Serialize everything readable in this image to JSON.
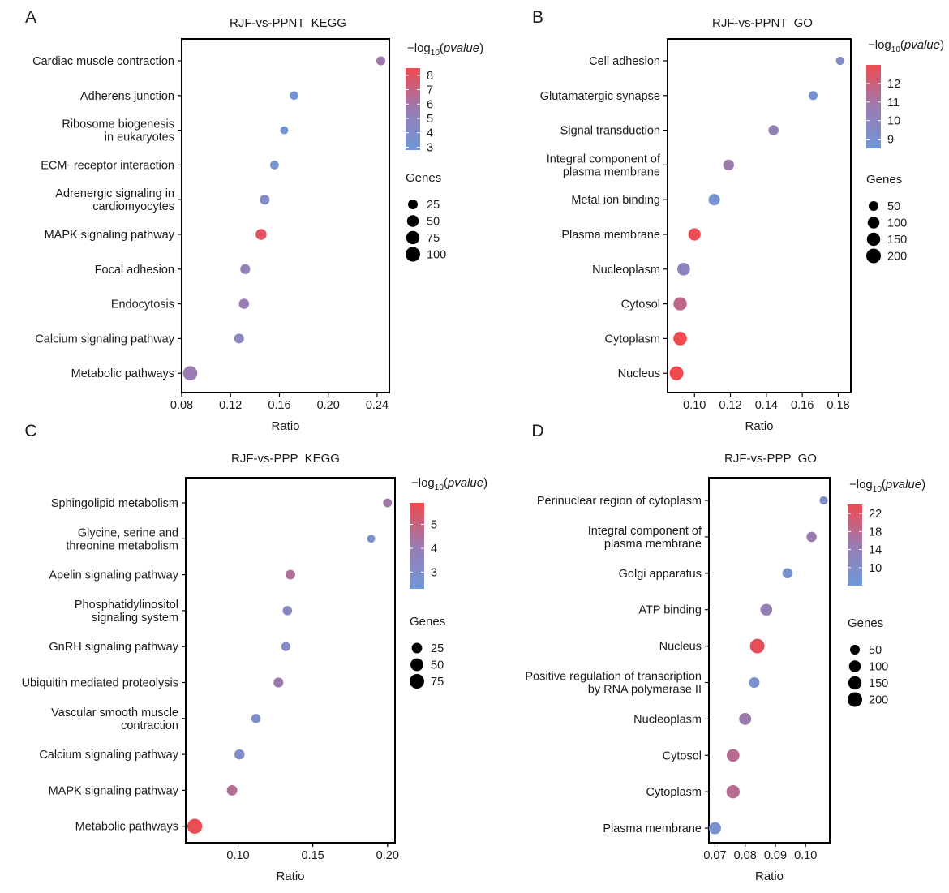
{
  "colors": {
    "low": "#6f98d8",
    "mid": "#9a7bb0",
    "high": "#f04a4f",
    "axis": "#000000",
    "text": "#1a1a1a"
  },
  "chart_data": [
    {
      "type": "scatter",
      "panel_label": "A",
      "title": "RJF-vs-PPNT  KEGG",
      "xlabel": "Ratio",
      "xlim": [
        0.08,
        0.25
      ],
      "xticks": [
        0.08,
        0.12,
        0.16,
        0.2,
        0.24
      ],
      "xtick_labels": [
        "0.08",
        "0.12",
        "0.16",
        "0.20",
        "0.24"
      ],
      "categories": [
        [
          "Cardiac muscle contraction"
        ],
        [
          "Adherens junction"
        ],
        [
          "Ribosome biogenesis",
          "in eukaryotes"
        ],
        [
          "ECM−receptor interaction"
        ],
        [
          "Adrenergic signaling in",
          "cardiomyocytes"
        ],
        [
          "MAPK signaling pathway"
        ],
        [
          "Focal adhesion"
        ],
        [
          "Endocytosis"
        ],
        [
          "Calcium signaling pathway"
        ],
        [
          "Metabolic pathways"
        ]
      ],
      "ratio": [
        0.243,
        0.172,
        0.164,
        0.156,
        0.148,
        0.145,
        0.132,
        0.131,
        0.127,
        0.087
      ],
      "genes": [
        18,
        15,
        10,
        16,
        25,
        40,
        27,
        30,
        26,
        95
      ],
      "neglog10p": [
        5.8,
        3.1,
        3.0,
        3.2,
        4.1,
        8.0,
        5.1,
        5.4,
        4.4,
        5.6
      ],
      "color_scale": {
        "label_prefix": "−log",
        "label_sub": "10",
        "label_var": "pvalue",
        "min": 2.8,
        "max": 8.5,
        "ticks": [
          3,
          4,
          5,
          6,
          7,
          8
        ]
      },
      "size_legend": {
        "title": "Genes",
        "values": [
          25,
          50,
          75,
          100
        ]
      }
    },
    {
      "type": "scatter",
      "panel_label": "B",
      "title": "RJF-vs-PPNT  GO",
      "xlabel": "Ratio",
      "xlim": [
        0.085,
        0.187
      ],
      "xticks": [
        0.1,
        0.12,
        0.14,
        0.16,
        0.18
      ],
      "xtick_labels": [
        "0.10",
        "0.12",
        "0.14",
        "0.16",
        "0.18"
      ],
      "categories": [
        [
          "Cell adhesion"
        ],
        [
          "Glutamatergic synapse"
        ],
        [
          "Signal transduction"
        ],
        [
          "Integral component of",
          "plasma membrane"
        ],
        [
          "Metal ion binding"
        ],
        [
          "Plasma membrane"
        ],
        [
          "Nucleoplasm"
        ],
        [
          "Cytosol"
        ],
        [
          "Cytoplasm"
        ],
        [
          "Nucleus"
        ]
      ],
      "ratio": [
        0.181,
        0.166,
        0.144,
        0.119,
        0.111,
        0.1,
        0.094,
        0.092,
        0.092,
        0.09
      ],
      "genes": [
        25,
        35,
        60,
        75,
        90,
        120,
        130,
        150,
        160,
        170
      ],
      "neglog10p": [
        9.5,
        8.9,
        10.4,
        10.8,
        8.9,
        12.9,
        10.0,
        11.7,
        13.0,
        13.0
      ],
      "color_scale": {
        "label_prefix": "−log",
        "label_sub": "10",
        "label_var": "pvalue",
        "min": 8.5,
        "max": 13.0,
        "ticks": [
          9,
          10,
          11,
          12
        ]
      },
      "size_legend": {
        "title": "Genes",
        "values": [
          50,
          100,
          150,
          200
        ]
      }
    },
    {
      "type": "scatter",
      "panel_label": "C",
      "title": "RJF-vs-PPP  KEGG",
      "xlabel": "Ratio",
      "xlim": [
        0.065,
        0.205
      ],
      "xticks": [
        0.1,
        0.15,
        0.2
      ],
      "xtick_labels": [
        "0.10",
        "0.15",
        "0.20"
      ],
      "categories": [
        [
          "Sphingolipid metabolism"
        ],
        [
          "Glycine, serine and",
          "threonine metabolism"
        ],
        [
          "Apelin signaling pathway"
        ],
        [
          "Phosphatidylinositol",
          "signaling system"
        ],
        [
          "GnRH signaling pathway"
        ],
        [
          "Ubiquitin mediated proteolysis"
        ],
        [
          "Vascular smooth muscle",
          "contraction"
        ],
        [
          "Calcium signaling pathway"
        ],
        [
          "MAPK signaling pathway"
        ],
        [
          "Metabolic pathways"
        ]
      ],
      "ratio": [
        0.2,
        0.189,
        0.135,
        0.133,
        0.132,
        0.127,
        0.112,
        0.101,
        0.096,
        0.071
      ],
      "genes": [
        12,
        8,
        18,
        16,
        14,
        20,
        15,
        22,
        25,
        80
      ],
      "neglog10p": [
        4.2,
        2.8,
        4.5,
        3.3,
        3.1,
        4.1,
        2.9,
        3.0,
        4.6,
        5.8
      ],
      "color_scale": {
        "label_prefix": "−log",
        "label_sub": "10",
        "label_var": "pvalue",
        "min": 2.3,
        "max": 5.9,
        "ticks": [
          3,
          4,
          5
        ]
      },
      "size_legend": {
        "title": "Genes",
        "values": [
          25,
          50,
          75
        ]
      }
    },
    {
      "type": "scatter",
      "panel_label": "D",
      "title": "RJF-vs-PPP  GO",
      "xlabel": "Ratio",
      "xlim": [
        0.068,
        0.108
      ],
      "xticks": [
        0.07,
        0.08,
        0.09,
        0.1
      ],
      "xtick_labels": [
        "0.07",
        "0.08",
        "0.09",
        "0.10"
      ],
      "categories": [
        [
          "Perinuclear region of cytoplasm"
        ],
        [
          "Integral component of",
          "plasma membrane"
        ],
        [
          "Golgi apparatus"
        ],
        [
          "ATP binding"
        ],
        [
          "Nucleus"
        ],
        [
          "Positive regulation of transcription",
          "by RNA polymerase II"
        ],
        [
          "Nucleoplasm"
        ],
        [
          "Cytosol"
        ],
        [
          "Cytoplasm"
        ],
        [
          "Plasma membrane"
        ]
      ],
      "ratio": [
        0.106,
        0.102,
        0.094,
        0.087,
        0.084,
        0.083,
        0.08,
        0.076,
        0.076,
        0.07
      ],
      "genes": [
        25,
        60,
        60,
        100,
        200,
        70,
        110,
        130,
        150,
        110
      ],
      "neglog10p": [
        9,
        15,
        8,
        14,
        23,
        8,
        15,
        18,
        18,
        8
      ],
      "color_scale": {
        "label_prefix": "−log",
        "label_sub": "10",
        "label_var": "pvalue",
        "min": 6,
        "max": 24,
        "ticks": [
          10,
          14,
          18,
          22
        ]
      },
      "size_legend": {
        "title": "Genes",
        "values": [
          50,
          100,
          150,
          200
        ]
      }
    }
  ]
}
